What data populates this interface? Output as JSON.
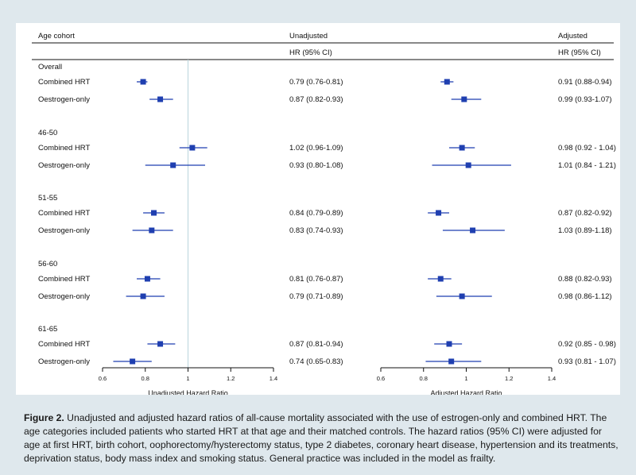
{
  "colors": {
    "background": "#dfe8ed",
    "marker": "#1f3fb0",
    "refline": "#b9d4dc",
    "text": "#111111"
  },
  "headers": {
    "cohort": "Age cohort",
    "unadjusted_line1": "Unadjusted",
    "unadjusted_line2": "HR (95% CI)",
    "adjusted_line1": "Adjusted",
    "adjusted_line2": "HR (95% CI)"
  },
  "caption": {
    "label": "Figure 2.",
    "text": " Unadjusted and adjusted hazard ratios of all-cause mortality associated with the use of estrogen-only and combined HRT. The age categories included patients who started HRT at that age and their matched controls. The hazard ratios (95% CI) were adjusted for age at first HRT, birth cohort, oophorectomy/hysterectomy status, type 2 diabetes, coronary heart disease, hypertension and its treatments, deprivation status, body mass index and smoking status. General practice was included in the model as frailty."
  },
  "chart_data": [
    {
      "type": "forest",
      "title": "Unadjusted",
      "xlabel": "Unadjusted Hazard Ratio",
      "xlim": [
        0.6,
        1.4
      ],
      "xticks": [
        "0.6",
        "0.8",
        "1",
        "1.2",
        "1.4"
      ],
      "reference_line": 1,
      "groups": [
        {
          "name": "Overall",
          "rows": [
            {
              "label": "Combined HRT",
              "hr": 0.79,
              "lo": 0.76,
              "hi": 0.81,
              "text": "0.79 (0.76-0.81)"
            },
            {
              "label": "Oestrogen-only",
              "hr": 0.87,
              "lo": 0.82,
              "hi": 0.93,
              "text": "0.87 (0.82-0.93)"
            }
          ]
        },
        {
          "name": "46-50",
          "rows": [
            {
              "label": "Combined HRT",
              "hr": 1.02,
              "lo": 0.96,
              "hi": 1.09,
              "text": "1.02 (0.96-1.09)"
            },
            {
              "label": "Oestrogen-only",
              "hr": 0.93,
              "lo": 0.8,
              "hi": 1.08,
              "text": "0.93 (0.80-1.08)"
            }
          ]
        },
        {
          "name": "51-55",
          "rows": [
            {
              "label": "Combined HRT",
              "hr": 0.84,
              "lo": 0.79,
              "hi": 0.89,
              "text": "0.84 (0.79-0.89)"
            },
            {
              "label": "Oestrogen-only",
              "hr": 0.83,
              "lo": 0.74,
              "hi": 0.93,
              "text": "0.83 (0.74-0.93)"
            }
          ]
        },
        {
          "name": "56-60",
          "rows": [
            {
              "label": "Combined HRT",
              "hr": 0.81,
              "lo": 0.76,
              "hi": 0.87,
              "text": "0.81 (0.76-0.87)"
            },
            {
              "label": "Oestrogen-only",
              "hr": 0.79,
              "lo": 0.71,
              "hi": 0.89,
              "text": "0.79 (0.71-0.89)"
            }
          ]
        },
        {
          "name": "61-65",
          "rows": [
            {
              "label": "Combined HRT",
              "hr": 0.87,
              "lo": 0.81,
              "hi": 0.94,
              "text": "0.87 (0.81-0.94)"
            },
            {
              "label": "Oestrogen-only",
              "hr": 0.74,
              "lo": 0.65,
              "hi": 0.83,
              "text": "0.74 (0.65-0.83)"
            }
          ]
        }
      ]
    },
    {
      "type": "forest",
      "title": "Adjusted",
      "xlabel": "Adjusted Hazard Ratio",
      "xlim": [
        0.6,
        1.4
      ],
      "xticks": [
        "0.6",
        "0.8",
        "1",
        "1.2",
        "1.4"
      ],
      "reference_line": null,
      "groups": [
        {
          "name": "Overall",
          "rows": [
            {
              "label": "Combined HRT",
              "hr": 0.91,
              "lo": 0.88,
              "hi": 0.94,
              "text": "0.91 (0.88-0.94)"
            },
            {
              "label": "Oestrogen-only",
              "hr": 0.99,
              "lo": 0.93,
              "hi": 1.07,
              "text": "0.99 (0.93-1.07)"
            }
          ]
        },
        {
          "name": "46-50",
          "rows": [
            {
              "label": "Combined HRT",
              "hr": 0.98,
              "lo": 0.92,
              "hi": 1.04,
              "text": "0.98 (0.92 - 1.04)"
            },
            {
              "label": "Oestrogen-only",
              "hr": 1.01,
              "lo": 0.84,
              "hi": 1.21,
              "text": "1.01 (0.84 - 1.21)"
            }
          ]
        },
        {
          "name": "51-55",
          "rows": [
            {
              "label": "Combined HRT",
              "hr": 0.87,
              "lo": 0.82,
              "hi": 0.92,
              "text": "0.87 (0.82-0.92)"
            },
            {
              "label": "Oestrogen-only",
              "hr": 1.03,
              "lo": 0.89,
              "hi": 1.18,
              "text": "1.03 (0.89-1.18)"
            }
          ]
        },
        {
          "name": "56-60",
          "rows": [
            {
              "label": "Combined HRT",
              "hr": 0.88,
              "lo": 0.82,
              "hi": 0.93,
              "text": "0.88 (0.82-0.93)"
            },
            {
              "label": "Oestrogen-only",
              "hr": 0.98,
              "lo": 0.86,
              "hi": 1.12,
              "text": "0.98 (0.86-1.12)"
            }
          ]
        },
        {
          "name": "61-65",
          "rows": [
            {
              "label": "Combined HRT",
              "hr": 0.92,
              "lo": 0.85,
              "hi": 0.98,
              "text": "0.92 (0.85 - 0.98)"
            },
            {
              "label": "Oestrogen-only",
              "hr": 0.93,
              "lo": 0.81,
              "hi": 1.07,
              "text": "0.93 (0.81 - 1.07)"
            }
          ]
        }
      ]
    }
  ]
}
